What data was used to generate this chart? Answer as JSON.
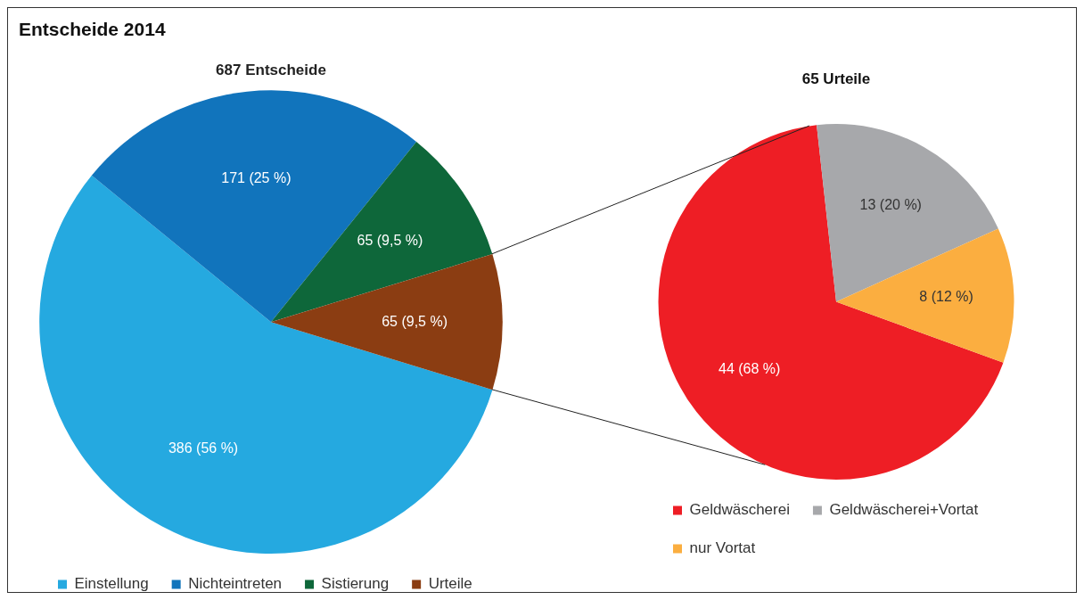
{
  "chart_data": [
    {
      "type": "pie",
      "title": "Entscheide 2014",
      "subtitle": "687 Entscheide",
      "categories": [
        "Einstellung",
        "Nichteintreten",
        "Sistierung",
        "Urteile"
      ],
      "values": [
        386,
        171,
        65,
        65
      ],
      "colors": [
        "#25a9e0",
        "#1174bc",
        "#0e673a",
        "#8b3d12"
      ],
      "value_labels": [
        "386 (56 %)",
        "171 (25 %)",
        "65 (9,5 %)",
        "65 (9,5 %)"
      ],
      "legend": "bottom"
    },
    {
      "type": "pie",
      "title": "65 Urteile",
      "categories": [
        "Geldwäscherei",
        "Geldwäscherei+Vortat",
        "nur Vortat"
      ],
      "values": [
        44,
        13,
        8
      ],
      "colors": [
        "#ee1e25",
        "#a7a8ab",
        "#fbae40"
      ],
      "value_labels": [
        "44 (68 %)",
        "13 (20 %)",
        "8 (12 %)"
      ],
      "legend": "bottom"
    }
  ]
}
